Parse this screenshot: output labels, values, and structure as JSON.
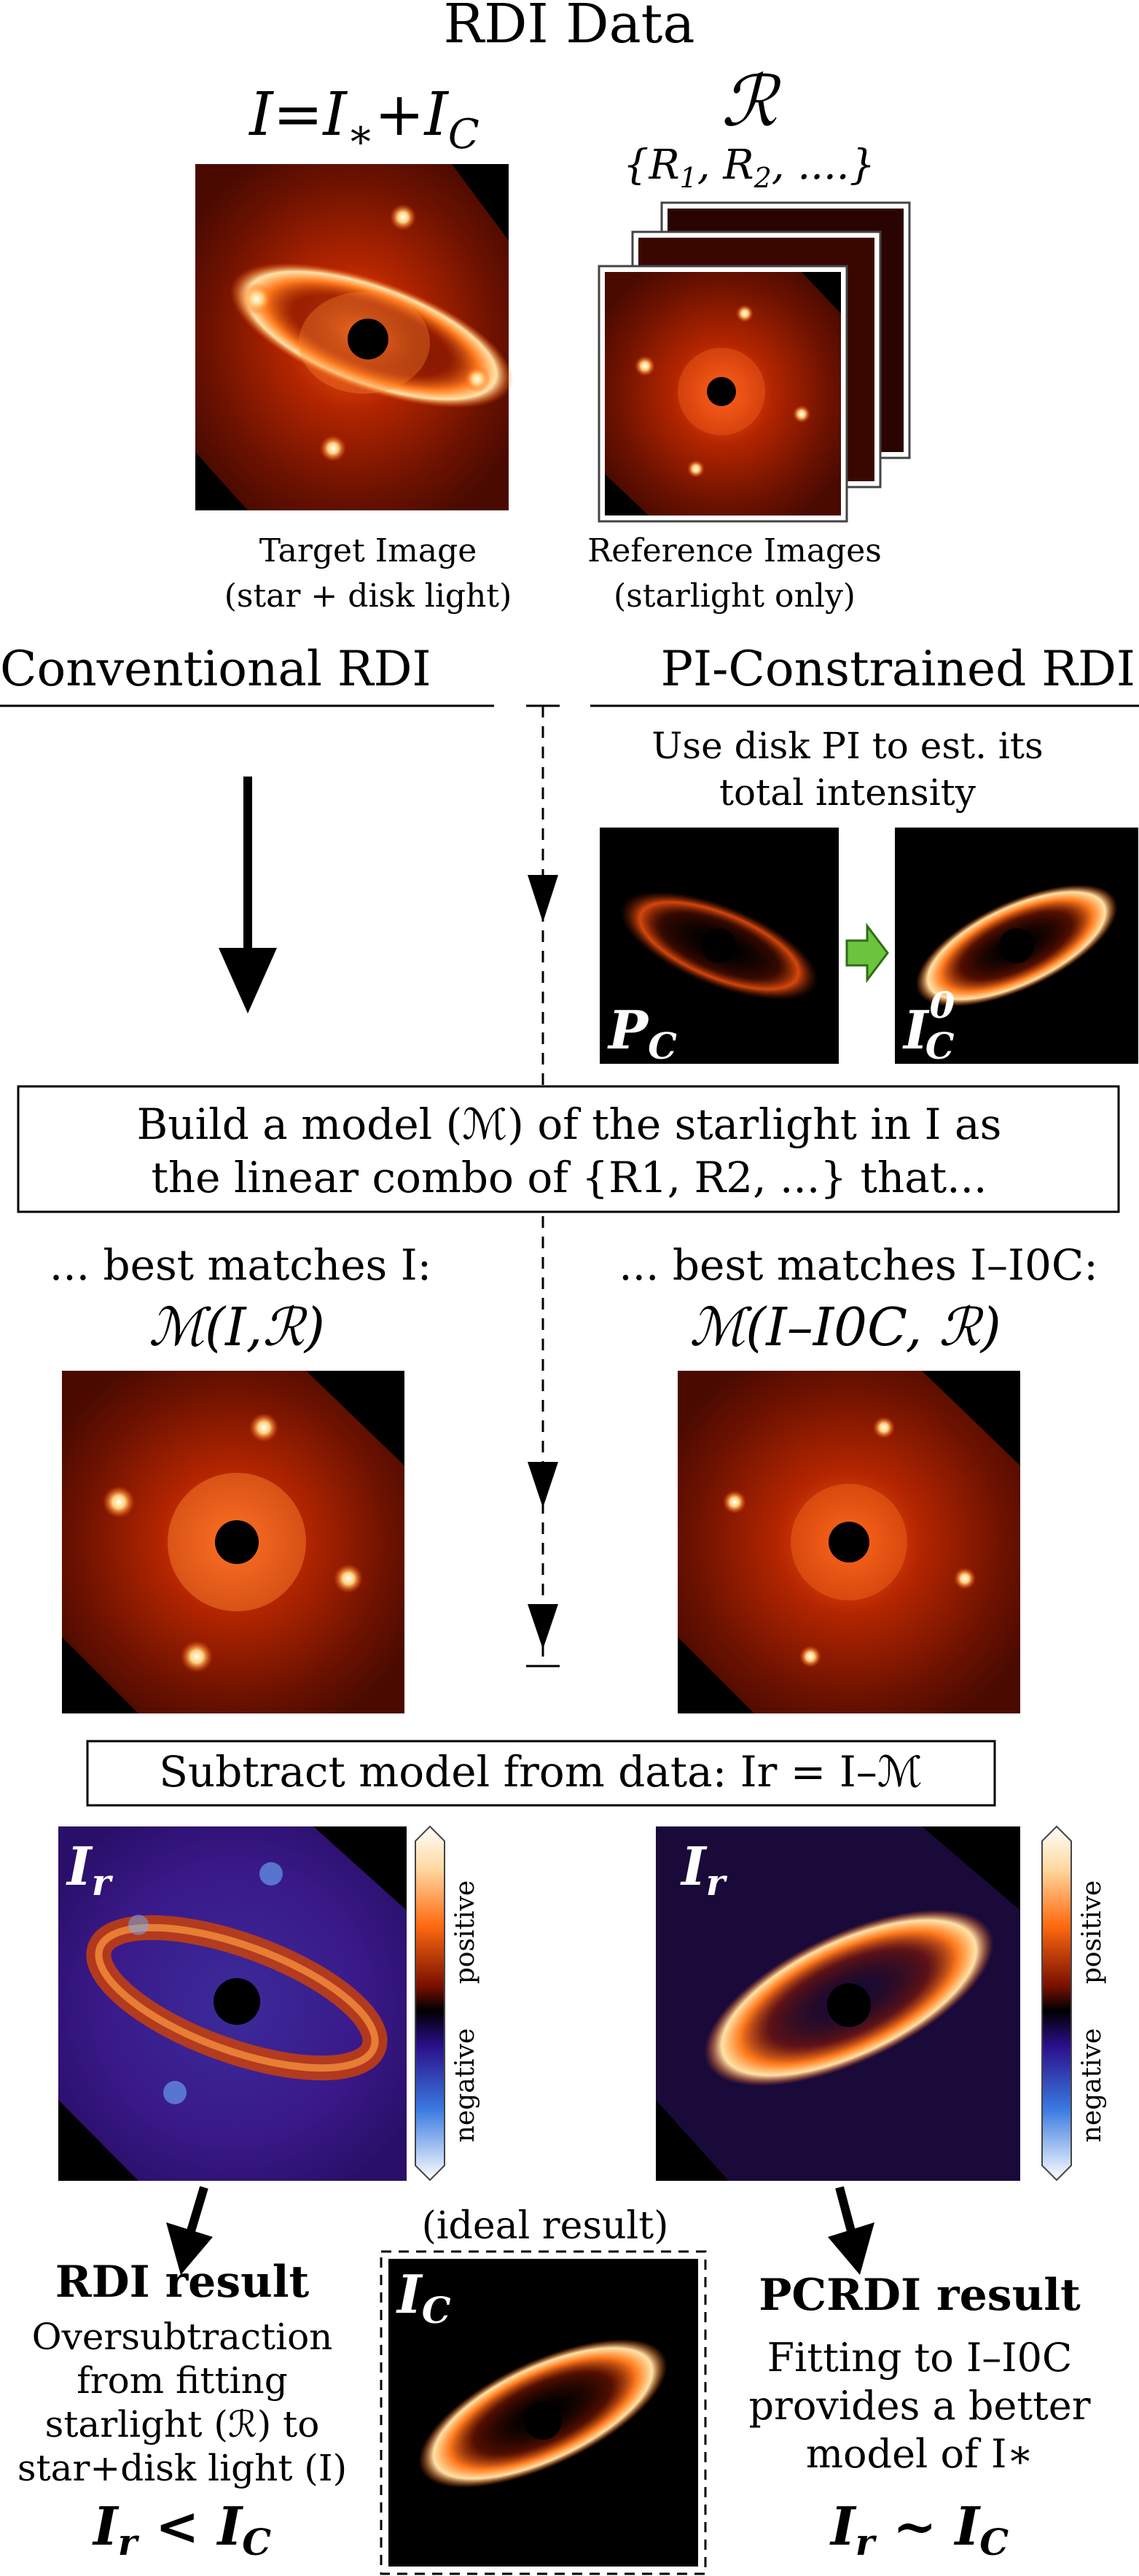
{
  "header": {
    "title": "RDI Data"
  },
  "top": {
    "target_formula": "I=I∗+IC",
    "target_caption_line1": "Target Image",
    "target_caption_line2": "(star + disk light)",
    "reference_symbol": "ℛ",
    "reference_set": "{R1, R2, ....}",
    "reference_caption_line1": "Reference Images",
    "reference_caption_line2": "(starlight only)"
  },
  "columns": {
    "left_header": "Conventional RDI",
    "right_header": "PI-Constrained RDI"
  },
  "pi_step": {
    "line1": "Use disk PI to est. its",
    "line2": "total intensity",
    "pc_label": "PC",
    "ic0_label": "I0C"
  },
  "model_box": {
    "line1": "Build a model (ℳ) of the starlight in I as",
    "line2": "the linear combo of {R1, R2, ...} that..."
  },
  "model_results": {
    "left_line1": "... best matches I:",
    "left_line2": "ℳ(I,ℛ)",
    "right_line1": "... best matches I–I0C:",
    "right_line2": "ℳ(I–I0C, ℛ)"
  },
  "subtract_box": {
    "text": "Subtract model from data: Ir = I–ℳ"
  },
  "residuals": {
    "ir_label": "Ir",
    "colorbar_positive": "positive",
    "colorbar_negative": "negative"
  },
  "results": {
    "ideal_label": "(ideal result)",
    "ic_label": "IC",
    "rdi_title": "RDI result",
    "rdi_line1": "Oversubtraction",
    "rdi_line2": "from fitting",
    "rdi_line3": "starlight (ℛ) to",
    "rdi_line4": "star+disk light (I)",
    "rdi_relation": "Ir < IC",
    "pcrdi_title": "PCRDI result",
    "pcrdi_line1": "Fitting to I–I0C",
    "pcrdi_line2": "provides a better",
    "pcrdi_line3": "model of I∗",
    "pcrdi_relation": "Ir ~ IC"
  },
  "colors": {
    "disk_bright": "#fff1c4",
    "disk_mid": "#ff7a1c",
    "disk_dark": "#8a1800",
    "residual_blue": "#3a1a8a",
    "arrow_green": "#6cc43c"
  }
}
